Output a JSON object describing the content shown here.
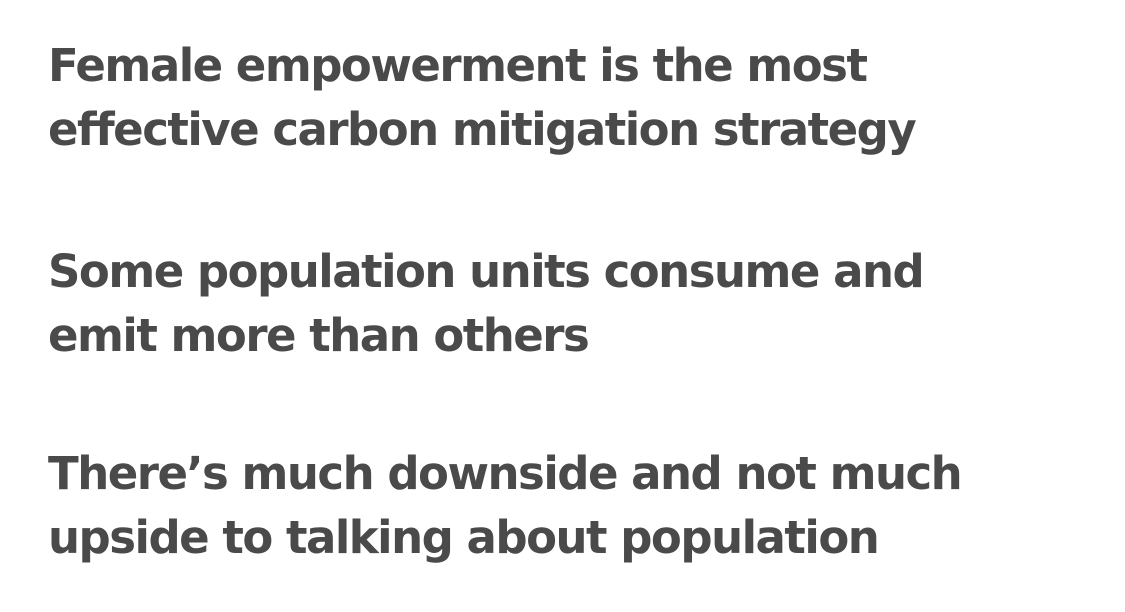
{
  "headings": [
    {
      "line1": "Female empowerment is the most",
      "line2": "effective carbon mitigation strategy"
    },
    {
      "line1": "Some population units consume and",
      "line2": "emit more than others"
    },
    {
      "line1": "There’s much downside and not much",
      "line2": "upside to talking about population"
    }
  ]
}
